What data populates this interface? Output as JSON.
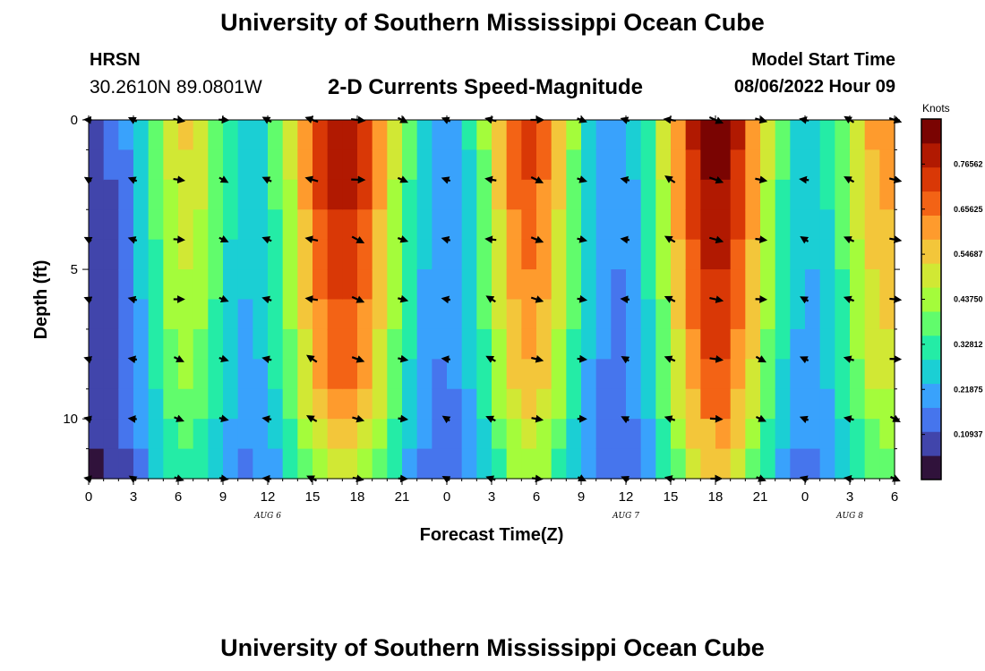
{
  "header": {
    "title": "University of Southern Mississippi Ocean Cube",
    "station": "HRSN",
    "coordinates": "30.2610N  89.0801W",
    "subtitle": "2-D Currents Speed-Magnitude",
    "model_start_label": "Model Start Time",
    "model_start_value": "08/06/2022 Hour 09"
  },
  "footer": {
    "title": "University of Southern Mississippi Ocean Cube"
  },
  "chart_data": {
    "type": "heatmap",
    "title": "2-D Currents Speed-Magnitude",
    "xlabel": "Forecast Time(Z)",
    "ylabel": "Depth (ft)",
    "x_hours": [
      0,
      54
    ],
    "ylim": [
      0,
      12
    ],
    "x_tick_labels": [
      "0",
      "3",
      "6",
      "9",
      "12",
      "15",
      "18",
      "21",
      "0",
      "3",
      "6",
      "9",
      "12",
      "15",
      "18",
      "21",
      "0",
      "3",
      "6"
    ],
    "y_tick_labels": [
      "0",
      "5",
      "10"
    ],
    "date_labels": [
      {
        "hour": 12,
        "text": "AUG 6"
      },
      {
        "hour": 36,
        "text": "AUG 7"
      },
      {
        "hour": 51,
        "text": "AUG 8"
      }
    ],
    "colorbar": {
      "title": "Knots",
      "range": [
        0,
        0.875
      ],
      "tick_values": [
        "0.10937",
        "0.21875",
        "0.32812",
        "0.43750",
        "0.54687",
        "0.65625",
        "0.76562"
      ],
      "colors": [
        "#30123b",
        "#4145ab",
        "#4675ed",
        "#39a2fc",
        "#1bcfd4",
        "#24eca6",
        "#61fc6c",
        "#a4fc3b",
        "#d1e834",
        "#f3c63a",
        "#fe9b2d",
        "#f36315",
        "#d93806",
        "#b11901",
        "#7a0402"
      ]
    },
    "columns_per_hour": 1,
    "depth_rows": 12,
    "peak_speed_hours": [
      17,
      41
    ],
    "vector_depths_ft": [
      0,
      2,
      4,
      6,
      8,
      10,
      12
    ],
    "vector_hours": [
      0,
      3,
      6,
      9,
      12,
      15,
      18,
      21,
      24,
      27,
      30,
      33,
      36,
      39,
      42,
      45,
      48,
      51,
      54
    ]
  }
}
